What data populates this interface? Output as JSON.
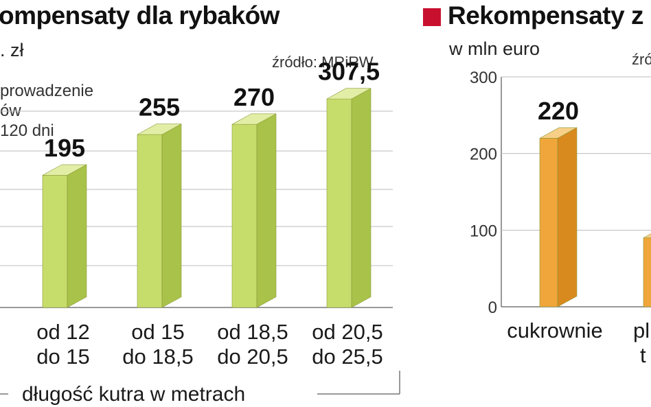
{
  "colors": {
    "left_bar_face": "#c6dd6c",
    "left_bar_side": "#a9c24a",
    "left_bar_top": "#e2eea6",
    "right_bar_face": "#f0a63a",
    "right_bar_side": "#d98a1e",
    "right_bar_top": "#f8cf86",
    "marker_red": "#c8102e",
    "grid": "#bbbbbb",
    "axis": "#777777"
  },
  "left_panel": {
    "title": "ompensaty dla rybaków",
    "unit": ". zł",
    "source": "źródło: MRiRW",
    "note_lines": [
      "prowadzenie",
      "ów",
      "120 dni"
    ],
    "axis_caption": "długość kutra w metrach"
  },
  "right_panel": {
    "title": "Rekompensaty z",
    "unit": "w mln euro",
    "source_partial": "źró"
  },
  "chart_data": [
    {
      "type": "bar",
      "title": "ompensaty dla rybaków",
      "xlabel": "długość kutra w metrach",
      "ylabel": ". zł",
      "categories": [
        [
          "od 12",
          "do 15"
        ],
        [
          "od 15",
          "do 18,5"
        ],
        [
          "od 18,5",
          "do 20,5"
        ],
        [
          "od 20,5",
          "do 25,5"
        ]
      ],
      "values": [
        195,
        255,
        270,
        307.5
      ],
      "value_labels": [
        "195",
        "255",
        "270",
        "307,5"
      ],
      "ylim": [
        0,
        340
      ],
      "grid": true
    },
    {
      "type": "bar",
      "title": "Rekompensaty z",
      "ylabel": "w mln euro",
      "categories": [
        "cukrownie",
        "pl"
      ],
      "second_category_line2": "t",
      "values": [
        220,
        90
      ],
      "value_labels": [
        "220",
        ""
      ],
      "ylim": [
        0,
        300
      ],
      "yticks": [
        "0",
        "100",
        "200",
        "300"
      ],
      "grid": true
    }
  ]
}
